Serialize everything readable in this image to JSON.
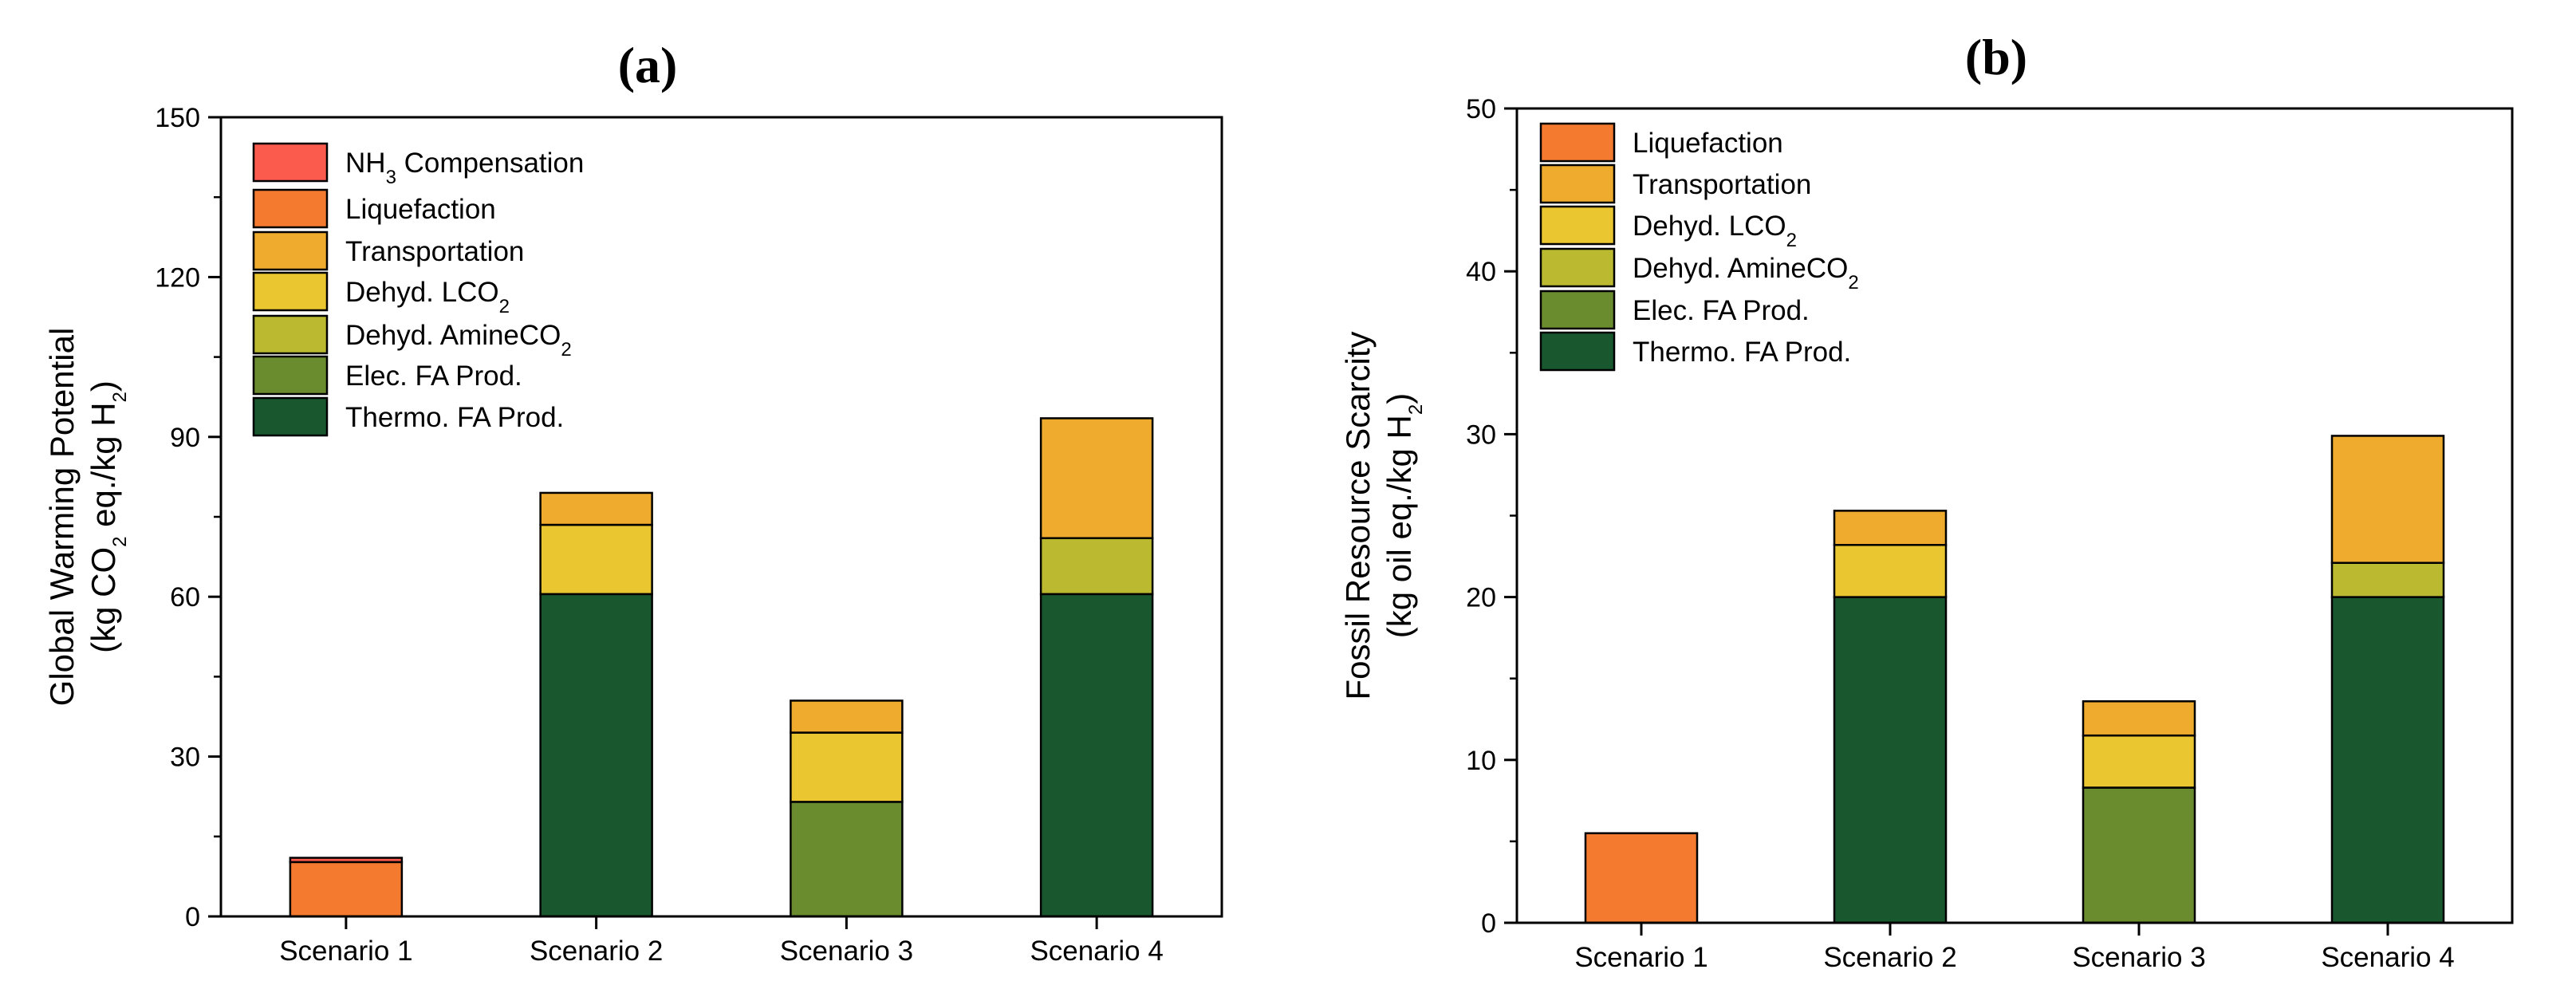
{
  "colors": {
    "nh3_compensation": "#fb5b4d",
    "liquefaction": "#f47a2f",
    "transportation": "#eeab2e",
    "dehyd_lco2": "#eac631",
    "dehyd_amineco2": "#bbb92f",
    "elec_fa_prod": "#6b8b2f",
    "thermo_fa_prod": "#19572f"
  },
  "chart_data": [
    {
      "type": "bar",
      "stacked": true,
      "panel_label": "(a)",
      "categories": [
        "Scenario 1",
        "Scenario 2",
        "Scenario 3",
        "Scenario 4"
      ],
      "ylabel_line1": "Global Warming Potential",
      "ylabel_line2": {
        "pre": "(kg CO",
        "sub1": "2",
        "mid": " eq./kg H",
        "sub2": "2",
        "post": ")"
      },
      "ylim": [
        0,
        150
      ],
      "yticks": [
        "0",
        "30",
        "60",
        "90",
        "120",
        "150"
      ],
      "tick_values": [
        0,
        30,
        60,
        90,
        120,
        150
      ],
      "legend_position": "top-left",
      "legend": [
        {
          "key": "nh3_compensation",
          "pre": "NH",
          "sub": "3",
          "post": " Compensation"
        },
        {
          "key": "liquefaction",
          "pre": "Liquefaction",
          "sub": "",
          "post": ""
        },
        {
          "key": "transportation",
          "pre": "Transportation",
          "sub": "",
          "post": ""
        },
        {
          "key": "dehyd_lco2",
          "pre": "Dehyd. LCO",
          "sub": "2",
          "post": ""
        },
        {
          "key": "dehyd_amineco2",
          "pre": "Dehyd. AmineCO",
          "sub": "2",
          "post": ""
        },
        {
          "key": "elec_fa_prod",
          "pre": "Elec. FA Prod.",
          "sub": "",
          "post": ""
        },
        {
          "key": "thermo_fa_prod",
          "pre": "Thermo. FA Prod.",
          "sub": "",
          "post": ""
        }
      ],
      "series": [
        {
          "name": "Thermo. FA Prod.",
          "key": "thermo_fa_prod",
          "values": [
            0,
            60.5,
            0,
            60.5
          ]
        },
        {
          "name": "Elec. FA Prod.",
          "key": "elec_fa_prod",
          "values": [
            0,
            0,
            21.5,
            0
          ]
        },
        {
          "name": "Dehyd. AmineCO2",
          "key": "dehyd_amineco2",
          "values": [
            0,
            0,
            0,
            10.5
          ]
        },
        {
          "name": "Dehyd. LCO2",
          "key": "dehyd_lco2",
          "values": [
            0,
            13,
            13,
            0
          ]
        },
        {
          "name": "Transportation",
          "key": "transportation",
          "values": [
            0,
            6,
            6,
            22.5
          ]
        },
        {
          "name": "Liquefaction",
          "key": "liquefaction",
          "values": [
            10.2,
            0,
            0,
            0
          ]
        },
        {
          "name": "NH3 Compensation",
          "key": "nh3_compensation",
          "values": [
            0.8,
            0,
            0,
            0
          ]
        }
      ]
    },
    {
      "type": "bar",
      "stacked": true,
      "panel_label": "(b)",
      "categories": [
        "Scenario 1",
        "Scenario 2",
        "Scenario 3",
        "Scenario 4"
      ],
      "ylabel_line1": "Fossil Resource Scarcity",
      "ylabel_line2": {
        "pre": "(kg oil eq./kg H",
        "sub1": "2",
        "mid": "",
        "sub2": "",
        "post": ")"
      },
      "ylim": [
        0,
        50
      ],
      "yticks": [
        "0",
        "10",
        "20",
        "30",
        "40",
        "50"
      ],
      "tick_values": [
        0,
        10,
        20,
        30,
        40,
        50
      ],
      "legend_position": "top-left",
      "legend": [
        {
          "key": "liquefaction",
          "pre": "Liquefaction",
          "sub": "",
          "post": ""
        },
        {
          "key": "transportation",
          "pre": "Transportation",
          "sub": "",
          "post": ""
        },
        {
          "key": "dehyd_lco2",
          "pre": "Dehyd. LCO",
          "sub": "2",
          "post": ""
        },
        {
          "key": "dehyd_amineco2",
          "pre": "Dehyd. AmineCO",
          "sub": "2",
          "post": ""
        },
        {
          "key": "elec_fa_prod",
          "pre": "Elec. FA Prod.",
          "sub": "",
          "post": ""
        },
        {
          "key": "thermo_fa_prod",
          "pre": "Thermo. FA Prod.",
          "sub": "",
          "post": ""
        }
      ],
      "series": [
        {
          "name": "Thermo. FA Prod.",
          "key": "thermo_fa_prod",
          "values": [
            0,
            20,
            0,
            20
          ]
        },
        {
          "name": "Elec. FA Prod.",
          "key": "elec_fa_prod",
          "values": [
            0,
            0,
            8.3,
            0
          ]
        },
        {
          "name": "Dehyd. AmineCO2",
          "key": "dehyd_amineco2",
          "values": [
            0,
            0,
            0,
            2.1
          ]
        },
        {
          "name": "Dehyd. LCO2",
          "key": "dehyd_lco2",
          "values": [
            0,
            3.2,
            3.2,
            0
          ]
        },
        {
          "name": "Transportation",
          "key": "transportation",
          "values": [
            0,
            2.1,
            2.1,
            7.8
          ]
        },
        {
          "name": "Liquefaction",
          "key": "liquefaction",
          "values": [
            5.5,
            0,
            0,
            0
          ]
        }
      ]
    }
  ]
}
